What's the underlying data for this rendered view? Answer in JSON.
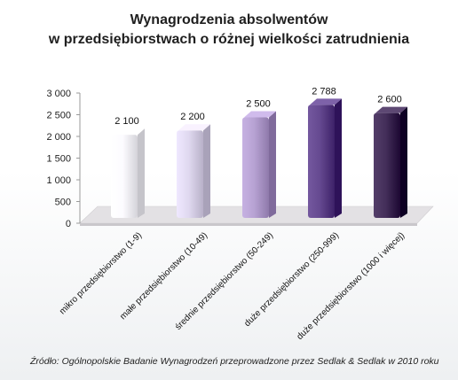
{
  "chart_data": {
    "type": "bar",
    "title": "Wynagrodzenia absolwentów",
    "subtitle": "w przedsiębiorstwach o różnej wielkości zatrudnienia",
    "categories": [
      "mikro przedsiębiorstwo (1-9)",
      "małe przedsiębiorstwo (10-49)",
      "średnie przedsiębiorstwo (50-249)",
      "duże przedsiębiorstwo (250-999)",
      "duże przedsiębiorstwo (1000 i więcej)"
    ],
    "values": [
      2100,
      2200,
      2500,
      2788,
      2600
    ],
    "value_labels": [
      "2 100",
      "2 200",
      "2 500",
      "2 788",
      "2 600"
    ],
    "yticks": [
      "0",
      "500",
      "1 000",
      "1 500",
      "2 000",
      "2 500",
      "3 000"
    ],
    "ylim": [
      0,
      3000
    ],
    "bar_colors": [
      "#f2f1f7",
      "#d6cfe6",
      "#ad98c9",
      "#5b3f86",
      "#3a2550"
    ],
    "grid": false,
    "legend": "none"
  },
  "source": "Źródło: Ogólnopolskie Badanie Wynagrodzeń przeprowadzone przez Sedlak & Sedlak w 2010 roku"
}
